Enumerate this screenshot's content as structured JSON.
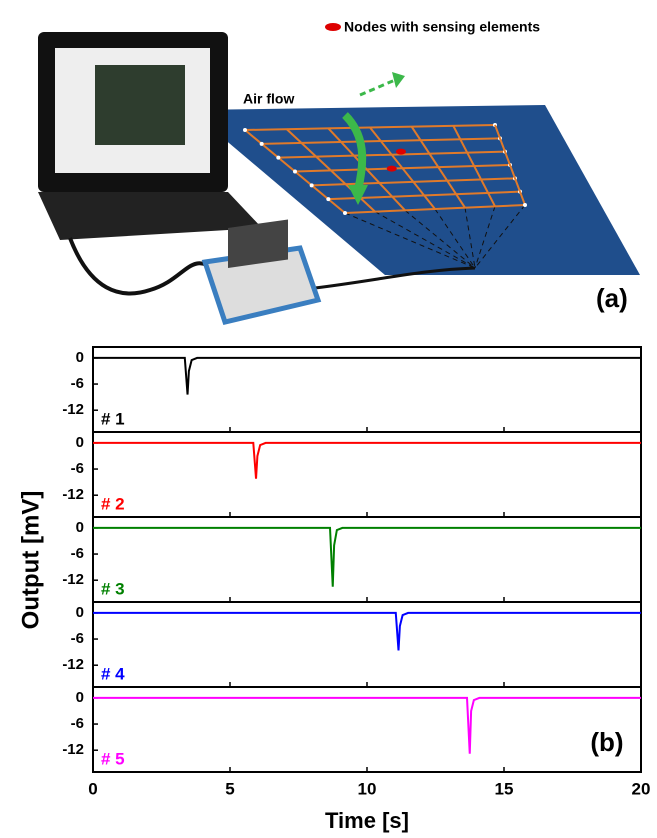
{
  "diagram": {
    "legend": "Nodes with sensing elements",
    "annotation": "Air flow",
    "label": "(a)"
  },
  "chart_data": {
    "type": "line",
    "panel_label": "(b)",
    "xlabel": "Time [s]",
    "ylabel": "Output [mV]",
    "xlim": [
      0,
      20
    ],
    "xticks": [
      0,
      5,
      10,
      15,
      20
    ],
    "ylim": [
      -17,
      2.5
    ],
    "yticks": [
      0,
      -6,
      -12
    ],
    "series": [
      {
        "name": "# 1",
        "color": "#000000",
        "x": [
          0,
          3.35,
          3.45,
          3.5,
          3.6,
          3.8,
          20
        ],
        "values": [
          0,
          0,
          -8.4,
          -3,
          -0.5,
          0,
          0
        ]
      },
      {
        "name": "# 2",
        "color": "#ff0000",
        "x": [
          0,
          5.85,
          5.95,
          6.0,
          6.1,
          6.3,
          20
        ],
        "values": [
          0,
          0,
          -8.2,
          -3,
          -0.5,
          0,
          0
        ]
      },
      {
        "name": "# 3",
        "color": "#008000",
        "x": [
          0,
          8.65,
          8.75,
          8.8,
          8.9,
          9.1,
          20
        ],
        "values": [
          0,
          0,
          -13.5,
          -4,
          -0.5,
          0,
          0
        ]
      },
      {
        "name": "# 4",
        "color": "#0000ff",
        "x": [
          0,
          11.05,
          11.15,
          11.2,
          11.3,
          11.5,
          20
        ],
        "values": [
          0,
          0,
          -8.6,
          -3,
          -0.5,
          0,
          0
        ]
      },
      {
        "name": "# 5",
        "color": "#ff00ff",
        "x": [
          0,
          13.65,
          13.75,
          13.8,
          13.9,
          14.1,
          20
        ],
        "values": [
          0,
          0,
          -12.8,
          -3,
          -0.5,
          0,
          0
        ]
      }
    ]
  }
}
